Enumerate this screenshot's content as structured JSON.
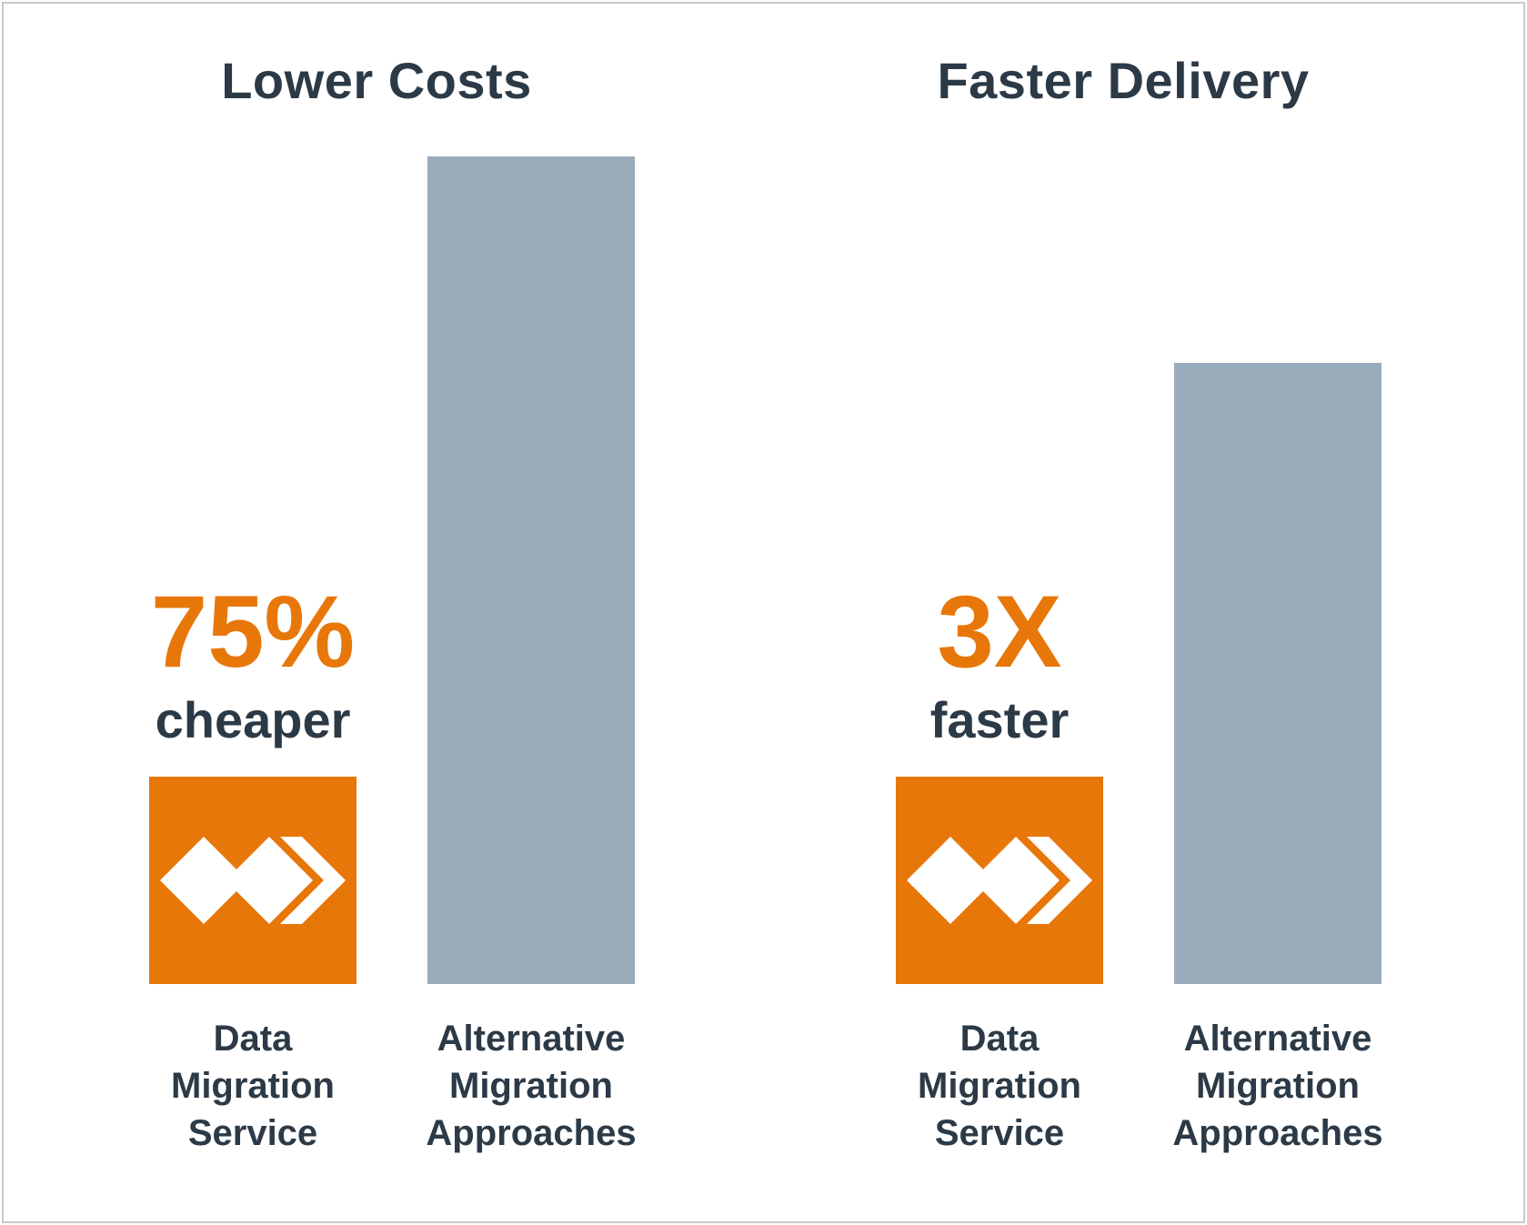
{
  "colors": {
    "accent": "#e8770a",
    "bar_gray": "#9aabbb",
    "text": "#2c3a47",
    "border": "#c9c9c9",
    "background": "#ffffff"
  },
  "icons": {
    "bar_logo": "data-migration-logo-icon"
  },
  "chart_data": [
    {
      "type": "bar",
      "title": "Lower Costs",
      "categories": [
        "Data Migration Service",
        "Alternative Migration Approaches"
      ],
      "category_label_lines": [
        [
          "Data",
          "Migration",
          "Service"
        ],
        [
          "Alternative",
          "Migration",
          "Approaches"
        ]
      ],
      "values": [
        25,
        100
      ],
      "ylim": [
        0,
        100
      ],
      "callout": {
        "value": "75%",
        "text": "cheaper"
      },
      "grid": false,
      "legend": "none"
    },
    {
      "type": "bar",
      "title": "Faster Delivery",
      "categories": [
        "Data Migration Service",
        "Alternative Migration Approaches"
      ],
      "category_label_lines": [
        [
          "Data",
          "Migration",
          "Service"
        ],
        [
          "Alternative",
          "Migration",
          "Approaches"
        ]
      ],
      "values": [
        25,
        75
      ],
      "ylim": [
        0,
        100
      ],
      "callout": {
        "value": "3X",
        "text": "faster"
      },
      "grid": false,
      "legend": "none"
    }
  ]
}
